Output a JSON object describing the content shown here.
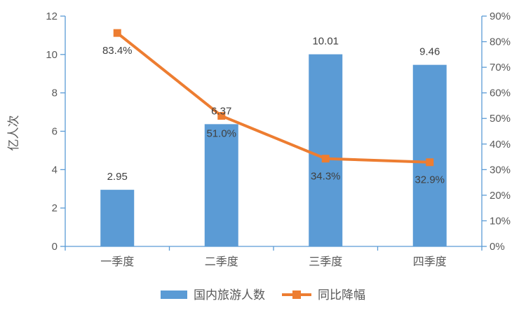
{
  "chart_data": {
    "type": "bar+line",
    "categories": [
      "一季度",
      "二季度",
      "三季度",
      "四季度"
    ],
    "series": [
      {
        "name": "国内旅游人数",
        "type": "bar",
        "axis": "left",
        "color": "#5B9BD5",
        "values": [
          2.95,
          6.37,
          10.01,
          9.46
        ],
        "labels": [
          "2.95",
          "6.37",
          "10.01",
          "9.46"
        ]
      },
      {
        "name": "同比降幅",
        "type": "line",
        "axis": "right",
        "marker": "square",
        "color": "#ED7D31",
        "values": [
          83.4,
          51.0,
          34.3,
          32.9
        ],
        "labels": [
          "83.4%",
          "51.0%",
          "34.3%",
          "32.9%"
        ]
      }
    ],
    "left_axis": {
      "title": "亿人次",
      "min": 0,
      "max": 12,
      "step": 2,
      "ticks": [
        "0",
        "2",
        "4",
        "6",
        "8",
        "10",
        "12"
      ]
    },
    "right_axis": {
      "min": 0,
      "max": 90,
      "step": 10,
      "ticks": [
        "0%",
        "10%",
        "20%",
        "30%",
        "40%",
        "50%",
        "60%",
        "70%",
        "80%",
        "90%"
      ]
    },
    "grid": false,
    "legend_position": "bottom",
    "colors": {
      "axis_line": "#5B9BD5",
      "tick_text": "#595959",
      "data_label_text": "#404040",
      "background": "#FFFFFF"
    }
  }
}
